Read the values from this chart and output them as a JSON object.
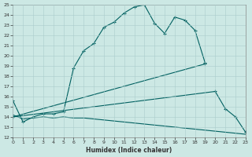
{
  "xlabel": "Humidex (Indice chaleur)",
  "bg_color": "#cce8e4",
  "grid_color": "#aacccc",
  "line_color": "#006060",
  "ylim": [
    12,
    25
  ],
  "xlim": [
    0,
    23
  ],
  "yticks": [
    12,
    13,
    14,
    15,
    16,
    17,
    18,
    19,
    20,
    21,
    22,
    23,
    24,
    25
  ],
  "xticks": [
    0,
    1,
    2,
    3,
    4,
    5,
    6,
    7,
    8,
    9,
    10,
    11,
    12,
    13,
    14,
    15,
    16,
    17,
    18,
    19,
    20,
    21,
    22,
    23
  ],
  "line1_x": [
    0,
    1,
    2,
    3,
    4,
    5,
    6,
    7,
    8,
    9,
    10,
    11,
    12,
    13,
    14,
    15,
    16,
    17,
    18,
    19,
    20,
    21,
    22,
    23
  ],
  "line1_y": [
    15.6,
    13.5,
    14.0,
    14.3,
    14.3,
    14.5,
    18.8,
    20.5,
    21.2,
    22.8,
    23.3,
    24.2,
    24.8,
    25.0,
    23.2,
    22.2,
    23.8,
    23.5,
    22.5,
    19.3,
    null,
    null,
    null,
    null
  ],
  "line2_x": [
    0,
    19
  ],
  "line2_y": [
    14.0,
    19.2
  ],
  "line3_x": [
    0,
    20,
    21,
    22,
    23
  ],
  "line3_y": [
    14.0,
    16.5,
    14.8,
    14.0,
    12.5
  ],
  "line4_x": [
    0,
    1,
    2,
    3,
    4,
    5,
    6,
    7,
    8,
    9,
    10,
    11,
    12,
    13,
    14,
    15,
    16,
    17,
    18,
    19,
    20,
    21,
    22,
    23
  ],
  "line4_y": [
    14.2,
    13.8,
    13.9,
    14.0,
    13.9,
    14.0,
    13.9,
    13.9,
    13.8,
    13.7,
    13.6,
    13.5,
    13.4,
    13.3,
    13.2,
    13.1,
    13.0,
    12.9,
    12.8,
    12.7,
    12.6,
    12.5,
    12.4,
    12.3
  ]
}
